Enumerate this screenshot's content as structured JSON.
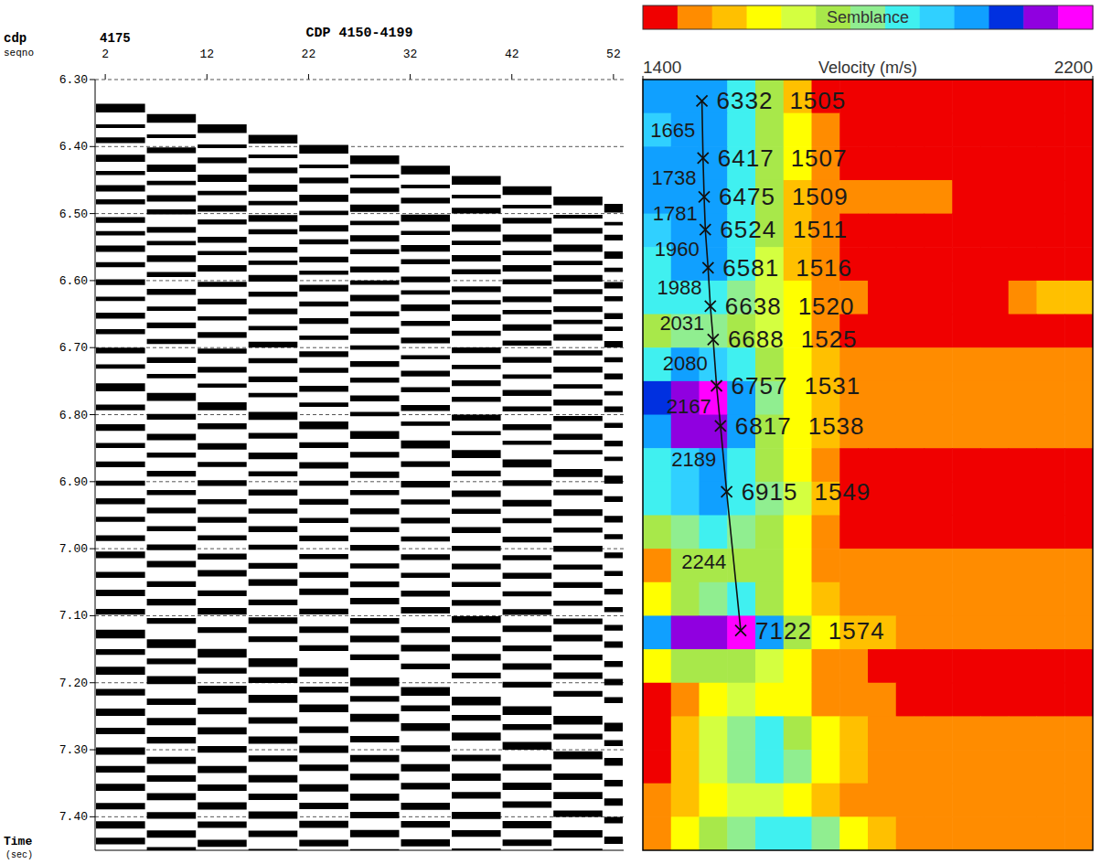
{
  "chart_data": [
    {
      "type": "wiggle",
      "title": "CDP 4150-4199",
      "x_label_lines": [
        "cdp",
        "seqno"
      ],
      "cdp_number": 4175,
      "ylabel": "Time",
      "ylabel_unit": "(sec)",
      "xlim": [
        1,
        53
      ],
      "xticks": [
        2,
        12,
        22,
        32,
        42,
        52
      ],
      "ylim": [
        6.3,
        7.45
      ],
      "yticks": [
        {
          "value": 6.3,
          "label": "6.30"
        },
        {
          "value": 6.4,
          "label": "6.40"
        },
        {
          "value": 6.5,
          "label": "6.50"
        },
        {
          "value": 6.6,
          "label": "6.60"
        },
        {
          "value": 6.7,
          "label": "6.70"
        },
        {
          "value": 6.8,
          "label": "6.80"
        },
        {
          "value": 6.9,
          "label": "6.90"
        },
        {
          "value": 7.0,
          "label": "7.00"
        },
        {
          "value": 7.1,
          "label": "7.10"
        },
        {
          "value": 7.2,
          "label": "7.20"
        },
        {
          "value": 7.3,
          "label": "7.30"
        },
        {
          "value": 7.4,
          "label": "7.40"
        }
      ],
      "grid": true,
      "events": {
        "x": [
          2,
          52
        ],
        "times_start": [
          6.338,
          6.365,
          6.386,
          6.413,
          6.435,
          6.458,
          6.478,
          6.505,
          6.525,
          6.548,
          6.572,
          6.598,
          6.623,
          6.648,
          6.672,
          6.7,
          6.724,
          6.755,
          6.785,
          6.815,
          6.842,
          6.87,
          6.898,
          6.925,
          6.952,
          6.98,
          7.005,
          7.035,
          7.062,
          7.09,
          7.123,
          7.15,
          7.178,
          7.21,
          7.24,
          7.268,
          7.298,
          7.325,
          7.352,
          7.38,
          7.408,
          7.432
        ],
        "times_end": [
          6.492,
          6.515,
          6.536,
          6.562,
          6.584,
          6.607,
          6.627,
          6.653,
          6.672,
          6.695,
          6.718,
          6.743,
          6.768,
          6.792,
          6.816,
          6.843,
          6.866,
          6.897,
          6.926,
          6.956,
          6.982,
          7.01,
          7.037,
          7.064,
          7.091,
          7.118,
          7.143,
          7.172,
          7.199,
          7.226,
          7.266,
          7.29,
          7.318,
          7.35,
          7.378,
          7.405,
          7.435,
          7.462,
          7.49,
          7.518,
          7.545,
          7.57
        ],
        "amplitudes": [
          1.0,
          0.3,
          0.6,
          0.8,
          0.4,
          0.7,
          0.5,
          0.6,
          0.4,
          0.7,
          0.5,
          0.6,
          0.4,
          0.6,
          0.5,
          0.6,
          0.4,
          0.9,
          0.6,
          0.7,
          0.5,
          0.6,
          0.5,
          0.6,
          0.5,
          0.6,
          0.7,
          0.6,
          0.7,
          0.6,
          1.0,
          0.6,
          0.9,
          0.7,
          0.8,
          0.7,
          0.8,
          0.7,
          0.8,
          0.7,
          0.8,
          0.7
        ]
      }
    },
    {
      "type": "heatmap",
      "colorbar": {
        "label": "Semblance",
        "range": [
          0,
          1
        ],
        "colors": [
          "#f00000",
          "#ff8c00",
          "#ffc000",
          "#ffff00",
          "#d4ff40",
          "#a8e84a",
          "#90ee90",
          "#40f0f0",
          "#30d0ff",
          "#10a0ff",
          "#0030e0",
          "#9000e0",
          "#ff00ff"
        ]
      },
      "xlabel": "Velocity (m/s)",
      "xlim": [
        1400,
        2200
      ],
      "xticks": [
        1400,
        2200
      ],
      "ylim": [
        6300,
        7450
      ],
      "tick_labels": "x",
      "semblance": {
        "times": [
          6300,
          6350,
          6400,
          6450,
          6500,
          6550,
          6600,
          6650,
          6700,
          6750,
          6800,
          6850,
          6900,
          6950,
          7000,
          7050,
          7100,
          7150,
          7200,
          7250,
          7300,
          7350,
          7400,
          7450
        ],
        "velocities": [
          1400,
          1450,
          1500,
          1550,
          1600,
          1650,
          1700,
          1750,
          1800,
          1850,
          1900,
          1950,
          2000,
          2050,
          2100,
          2150,
          2200
        ],
        "values": [
          [
            0.7,
            0.75,
            0.7,
            0.6,
            0.45,
            0.2,
            0.05,
            0.05,
            0.05,
            0.05,
            0.05,
            0.05,
            0.05,
            0.05,
            0.05,
            0.05
          ],
          [
            0.65,
            0.7,
            0.7,
            0.6,
            0.45,
            0.3,
            0.1,
            0.05,
            0.05,
            0.05,
            0.05,
            0.05,
            0.05,
            0.05,
            0.05,
            0.05
          ],
          [
            0.7,
            0.75,
            0.7,
            0.6,
            0.45,
            0.25,
            0.1,
            0.05,
            0.05,
            0.05,
            0.05,
            0.05,
            0.05,
            0.05,
            0.05,
            0.05
          ],
          [
            0.7,
            0.75,
            0.75,
            0.6,
            0.4,
            0.2,
            0.15,
            0.1,
            0.1,
            0.1,
            0.1,
            0.05,
            0.05,
            0.05,
            0.05,
            0.05
          ],
          [
            0.65,
            0.7,
            0.7,
            0.55,
            0.4,
            0.2,
            0.1,
            0.05,
            0.05,
            0.05,
            0.05,
            0.05,
            0.05,
            0.05,
            0.05,
            0.05
          ],
          [
            0.6,
            0.7,
            0.7,
            0.55,
            0.35,
            0.2,
            0.1,
            0.05,
            0.05,
            0.05,
            0.05,
            0.05,
            0.05,
            0.05,
            0.05,
            0.05
          ],
          [
            0.55,
            0.6,
            0.6,
            0.5,
            0.35,
            0.25,
            0.15,
            0.1,
            0.05,
            0.05,
            0.05,
            0.05,
            0.05,
            0.1,
            0.2,
            0.2
          ],
          [
            0.45,
            0.5,
            0.5,
            0.45,
            0.35,
            0.25,
            0.15,
            0.05,
            0.05,
            0.05,
            0.05,
            0.05,
            0.05,
            0.05,
            0.05,
            0.05
          ],
          [
            0.6,
            0.7,
            0.65,
            0.55,
            0.4,
            0.3,
            0.2,
            0.15,
            0.12,
            0.1,
            0.1,
            0.1,
            0.08,
            0.08,
            0.08,
            0.08
          ],
          [
            0.8,
            0.9,
            0.97,
            0.75,
            0.5,
            0.3,
            0.2,
            0.15,
            0.12,
            0.12,
            0.1,
            0.1,
            0.1,
            0.1,
            0.1,
            0.1
          ],
          [
            0.75,
            0.85,
            0.85,
            0.7,
            0.45,
            0.3,
            0.2,
            0.15,
            0.1,
            0.1,
            0.08,
            0.08,
            0.08,
            0.08,
            0.08,
            0.08
          ],
          [
            0.55,
            0.65,
            0.7,
            0.6,
            0.45,
            0.3,
            0.15,
            0.05,
            0.05,
            0.05,
            0.05,
            0.05,
            0.05,
            0.05,
            0.05,
            0.05
          ],
          [
            0.6,
            0.65,
            0.7,
            0.6,
            0.5,
            0.35,
            0.2,
            0.05,
            0.05,
            0.05,
            0.05,
            0.05,
            0.05,
            0.05,
            0.05,
            0.05
          ],
          [
            0.45,
            0.5,
            0.55,
            0.5,
            0.4,
            0.3,
            0.15,
            0.05,
            0.05,
            0.05,
            0.05,
            0.05,
            0.05,
            0.05,
            0.05,
            0.05
          ],
          [
            0.1,
            0.4,
            0.45,
            0.45,
            0.4,
            0.3,
            0.15,
            0.1,
            0.1,
            0.08,
            0.08,
            0.08,
            0.08,
            0.08,
            0.08,
            0.08
          ],
          [
            0.3,
            0.45,
            0.5,
            0.55,
            0.45,
            0.3,
            0.2,
            0.15,
            0.1,
            0.1,
            0.1,
            0.1,
            0.1,
            0.1,
            0.1,
            0.1
          ],
          [
            0.75,
            0.85,
            0.9,
            0.97,
            0.7,
            0.45,
            0.3,
            0.2,
            0.2,
            0.15,
            0.15,
            0.15,
            0.15,
            0.15,
            0.15,
            0.15
          ],
          [
            0.3,
            0.4,
            0.45,
            0.45,
            0.35,
            0.25,
            0.15,
            0.1,
            0.05,
            0.05,
            0.05,
            0.05,
            0.05,
            0.05,
            0.05,
            0.05
          ],
          [
            0.05,
            0.1,
            0.25,
            0.35,
            0.3,
            0.25,
            0.15,
            0.1,
            0.08,
            0.05,
            0.05,
            0.05,
            0.05,
            0.05,
            0.05,
            0.05
          ],
          [
            0.05,
            0.2,
            0.35,
            0.5,
            0.55,
            0.45,
            0.3,
            0.2,
            0.15,
            0.1,
            0.08,
            0.08,
            0.08,
            0.08,
            0.08,
            0.08
          ],
          [
            0.05,
            0.2,
            0.35,
            0.5,
            0.6,
            0.5,
            0.3,
            0.2,
            0.15,
            0.1,
            0.08,
            0.08,
            0.08,
            0.08,
            0.08,
            0.08
          ],
          [
            0.1,
            0.2,
            0.3,
            0.35,
            0.35,
            0.3,
            0.2,
            0.15,
            0.12,
            0.1,
            0.1,
            0.1,
            0.1,
            0.1,
            0.1,
            0.1
          ],
          [
            0.15,
            0.3,
            0.4,
            0.5,
            0.55,
            0.6,
            0.5,
            0.3,
            0.2,
            0.15,
            0.12,
            0.1,
            0.1,
            0.1,
            0.1,
            0.1
          ]
        ]
      },
      "picks": {
        "times": [
          6332,
          6417,
          6475,
          6524,
          6581,
          6638,
          6688,
          6757,
          6817,
          6915,
          7122
        ],
        "velocities": [
          1505,
          1507,
          1509,
          1511,
          1516,
          1520,
          1525,
          1531,
          1538,
          1549,
          1574
        ]
      },
      "interval_velocities": [
        1665,
        1738,
        1781,
        1960,
        1988,
        2031,
        2080,
        2167,
        2189,
        2244
      ]
    }
  ]
}
